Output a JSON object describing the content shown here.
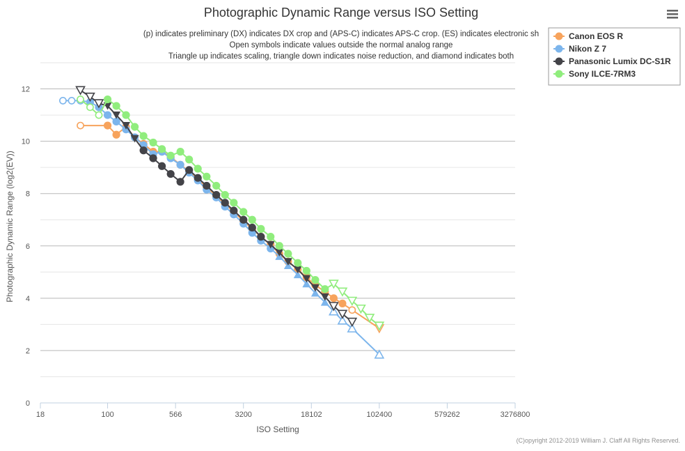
{
  "chart_data": {
    "type": "scatter",
    "title": "Photographic Dynamic Range versus ISO Setting",
    "subtitle": [
      "(p) indicates preliminary (DX) indicates DX crop and (APS-C) indicates APS-C crop. (ES) indicates electronic sh",
      "Open symbols indicate values outside the normal analog range",
      "Triangle up indicates scaling, triangle down indicates noise reduction, and diamond indicates both"
    ],
    "xlabel": "ISO Setting",
    "ylabel": "Photographic Dynamic Range (log2(EV))",
    "x_scale": "log",
    "xlim": [
      18,
      3276800
    ],
    "ylim": [
      0,
      12
    ],
    "x_ticks": [
      18,
      100,
      566,
      3200,
      18102,
      102400,
      579262,
      3276800
    ],
    "y_ticks": [
      0,
      2,
      4,
      6,
      8,
      10,
      12
    ],
    "grid": "horizontal",
    "legend_position": "top-right",
    "copyright": "(C)opyright 2012-2019 William J. Claff All Rights Reserved.",
    "series": [
      {
        "name": "Canon EOS R",
        "color": "#f7a35c",
        "points": [
          {
            "x": 50,
            "y": 10.6,
            "marker": "circle",
            "open": true
          },
          {
            "x": 100,
            "y": 10.6,
            "marker": "circle",
            "open": false
          },
          {
            "x": 125,
            "y": 10.25,
            "marker": "circle",
            "open": false
          },
          {
            "x": 160,
            "y": 10.55,
            "marker": "circle",
            "open": false
          },
          {
            "x": 200,
            "y": 10.15,
            "marker": "circle",
            "open": false
          },
          {
            "x": 250,
            "y": 9.9,
            "marker": "circle",
            "open": false
          },
          {
            "x": 320,
            "y": 9.6,
            "marker": "circle",
            "open": false
          },
          {
            "x": 400,
            "y": 9.6,
            "marker": "circle",
            "open": false
          },
          {
            "x": 500,
            "y": 9.4,
            "marker": "circle",
            "open": false
          },
          {
            "x": 640,
            "y": 9.1,
            "marker": "circle",
            "open": false
          },
          {
            "x": 800,
            "y": 8.85,
            "marker": "circle",
            "open": false
          },
          {
            "x": 1000,
            "y": 8.55,
            "marker": "circle",
            "open": false
          },
          {
            "x": 1250,
            "y": 8.25,
            "marker": "circle",
            "open": false
          },
          {
            "x": 1600,
            "y": 7.9,
            "marker": "circle",
            "open": false
          },
          {
            "x": 2000,
            "y": 7.6,
            "marker": "circle",
            "open": false
          },
          {
            "x": 2500,
            "y": 7.3,
            "marker": "circle",
            "open": false
          },
          {
            "x": 3200,
            "y": 6.95,
            "marker": "circle",
            "open": false
          },
          {
            "x": 4000,
            "y": 6.65,
            "marker": "circle",
            "open": false
          },
          {
            "x": 5000,
            "y": 6.35,
            "marker": "circle",
            "open": false
          },
          {
            "x": 6400,
            "y": 6.05,
            "marker": "circle",
            "open": false
          },
          {
            "x": 8000,
            "y": 5.7,
            "marker": "circle",
            "open": false
          },
          {
            "x": 10000,
            "y": 5.4,
            "marker": "circle",
            "open": false
          },
          {
            "x": 12800,
            "y": 5.1,
            "marker": "circle",
            "open": false
          },
          {
            "x": 16000,
            "y": 4.8,
            "marker": "circle",
            "open": false
          },
          {
            "x": 20000,
            "y": 4.5,
            "marker": "circle",
            "open": false
          },
          {
            "x": 25600,
            "y": 4.25,
            "marker": "circle",
            "open": false
          },
          {
            "x": 32000,
            "y": 4.0,
            "marker": "circle",
            "open": false
          },
          {
            "x": 40000,
            "y": 3.8,
            "marker": "circle",
            "open": false
          },
          {
            "x": 51200,
            "y": 3.55,
            "marker": "circle",
            "open": true
          },
          {
            "x": 102400,
            "y": 2.85,
            "marker": "triangle-down",
            "open": true
          }
        ]
      },
      {
        "name": "Nikon Z 7",
        "color": "#7cb5ec",
        "points": [
          {
            "x": 32,
            "y": 11.55,
            "marker": "circle",
            "open": true
          },
          {
            "x": 40,
            "y": 11.55,
            "marker": "circle",
            "open": true
          },
          {
            "x": 50,
            "y": 11.55,
            "marker": "circle",
            "open": true
          },
          {
            "x": 64,
            "y": 11.5,
            "marker": "circle",
            "open": false
          },
          {
            "x": 80,
            "y": 11.3,
            "marker": "circle",
            "open": false
          },
          {
            "x": 100,
            "y": 11.0,
            "marker": "circle",
            "open": false
          },
          {
            "x": 125,
            "y": 10.75,
            "marker": "circle",
            "open": false
          },
          {
            "x": 160,
            "y": 10.45,
            "marker": "circle",
            "open": false
          },
          {
            "x": 200,
            "y": 10.15,
            "marker": "circle",
            "open": false
          },
          {
            "x": 250,
            "y": 9.85,
            "marker": "circle",
            "open": false
          },
          {
            "x": 320,
            "y": 9.5,
            "marker": "circle",
            "open": false
          },
          {
            "x": 400,
            "y": 9.6,
            "marker": "circle",
            "open": false
          },
          {
            "x": 500,
            "y": 9.35,
            "marker": "circle",
            "open": false
          },
          {
            "x": 640,
            "y": 9.1,
            "marker": "circle",
            "open": false
          },
          {
            "x": 800,
            "y": 8.8,
            "marker": "circle",
            "open": false
          },
          {
            "x": 1000,
            "y": 8.5,
            "marker": "circle",
            "open": false
          },
          {
            "x": 1250,
            "y": 8.15,
            "marker": "circle",
            "open": false
          },
          {
            "x": 1600,
            "y": 7.85,
            "marker": "circle",
            "open": false
          },
          {
            "x": 2000,
            "y": 7.5,
            "marker": "circle",
            "open": false
          },
          {
            "x": 2500,
            "y": 7.2,
            "marker": "circle",
            "open": false
          },
          {
            "x": 3200,
            "y": 6.85,
            "marker": "circle",
            "open": false
          },
          {
            "x": 4000,
            "y": 6.5,
            "marker": "circle",
            "open": false
          },
          {
            "x": 5000,
            "y": 6.2,
            "marker": "circle",
            "open": false
          },
          {
            "x": 6400,
            "y": 5.9,
            "marker": "circle",
            "open": false
          },
          {
            "x": 8000,
            "y": 5.6,
            "marker": "triangle-up",
            "open": false
          },
          {
            "x": 10000,
            "y": 5.25,
            "marker": "triangle-up",
            "open": false
          },
          {
            "x": 12800,
            "y": 4.9,
            "marker": "triangle-up",
            "open": false
          },
          {
            "x": 16000,
            "y": 4.55,
            "marker": "triangle-up",
            "open": false
          },
          {
            "x": 20000,
            "y": 4.2,
            "marker": "triangle-up",
            "open": false
          },
          {
            "x": 25600,
            "y": 3.85,
            "marker": "triangle-up",
            "open": false
          },
          {
            "x": 32000,
            "y": 3.5,
            "marker": "triangle-up",
            "open": true
          },
          {
            "x": 40000,
            "y": 3.15,
            "marker": "triangle-up",
            "open": true
          },
          {
            "x": 51200,
            "y": 2.85,
            "marker": "triangle-up",
            "open": true
          },
          {
            "x": 102400,
            "y": 1.85,
            "marker": "triangle-up",
            "open": true
          }
        ]
      },
      {
        "name": "Panasonic Lumix DC-S1R",
        "color": "#434348",
        "points": [
          {
            "x": 50,
            "y": 11.95,
            "marker": "triangle-down",
            "open": true
          },
          {
            "x": 64,
            "y": 11.7,
            "marker": "triangle-down",
            "open": true
          },
          {
            "x": 80,
            "y": 11.45,
            "marker": "triangle-down",
            "open": true
          },
          {
            "x": 100,
            "y": 11.35,
            "marker": "triangle-down",
            "open": false
          },
          {
            "x": 125,
            "y": 11.0,
            "marker": "triangle-down",
            "open": false
          },
          {
            "x": 160,
            "y": 10.6,
            "marker": "triangle-down",
            "open": false
          },
          {
            "x": 200,
            "y": 10.1,
            "marker": "triangle-down",
            "open": false
          },
          {
            "x": 250,
            "y": 9.65,
            "marker": "circle",
            "open": false
          },
          {
            "x": 320,
            "y": 9.35,
            "marker": "circle",
            "open": false
          },
          {
            "x": 400,
            "y": 9.05,
            "marker": "circle",
            "open": false
          },
          {
            "x": 500,
            "y": 8.75,
            "marker": "circle",
            "open": false
          },
          {
            "x": 640,
            "y": 8.45,
            "marker": "circle",
            "open": false
          },
          {
            "x": 800,
            "y": 8.9,
            "marker": "circle",
            "open": false
          },
          {
            "x": 1000,
            "y": 8.6,
            "marker": "circle",
            "open": false
          },
          {
            "x": 1250,
            "y": 8.3,
            "marker": "circle",
            "open": false
          },
          {
            "x": 1600,
            "y": 7.95,
            "marker": "circle",
            "open": false
          },
          {
            "x": 2000,
            "y": 7.65,
            "marker": "circle",
            "open": false
          },
          {
            "x": 2500,
            "y": 7.35,
            "marker": "circle",
            "open": false
          },
          {
            "x": 3200,
            "y": 7.0,
            "marker": "circle",
            "open": false
          },
          {
            "x": 4000,
            "y": 6.7,
            "marker": "circle",
            "open": false
          },
          {
            "x": 5000,
            "y": 6.35,
            "marker": "circle",
            "open": false
          },
          {
            "x": 6400,
            "y": 6.05,
            "marker": "triangle-down",
            "open": false
          },
          {
            "x": 8000,
            "y": 5.75,
            "marker": "triangle-down",
            "open": false
          },
          {
            "x": 10000,
            "y": 5.4,
            "marker": "triangle-down",
            "open": false
          },
          {
            "x": 12800,
            "y": 5.1,
            "marker": "triangle-down",
            "open": false
          },
          {
            "x": 16000,
            "y": 4.75,
            "marker": "triangle-down",
            "open": false
          },
          {
            "x": 20000,
            "y": 4.4,
            "marker": "triangle-down",
            "open": false
          },
          {
            "x": 25600,
            "y": 4.05,
            "marker": "triangle-down",
            "open": false
          },
          {
            "x": 32000,
            "y": 3.7,
            "marker": "triangle-down",
            "open": true
          },
          {
            "x": 40000,
            "y": 3.4,
            "marker": "triangle-down",
            "open": true
          },
          {
            "x": 51200,
            "y": 3.1,
            "marker": "triangle-down",
            "open": true
          }
        ]
      },
      {
        "name": "Sony ILCE-7RM3",
        "color": "#90ed7d",
        "points": [
          {
            "x": 50,
            "y": 11.6,
            "marker": "circle",
            "open": true
          },
          {
            "x": 64,
            "y": 11.3,
            "marker": "circle",
            "open": true
          },
          {
            "x": 80,
            "y": 11.0,
            "marker": "circle",
            "open": true
          },
          {
            "x": 100,
            "y": 11.6,
            "marker": "circle",
            "open": false
          },
          {
            "x": 125,
            "y": 11.35,
            "marker": "circle",
            "open": false
          },
          {
            "x": 160,
            "y": 11.0,
            "marker": "circle",
            "open": false
          },
          {
            "x": 200,
            "y": 10.55,
            "marker": "circle",
            "open": false
          },
          {
            "x": 250,
            "y": 10.2,
            "marker": "circle",
            "open": false
          },
          {
            "x": 320,
            "y": 9.95,
            "marker": "circle",
            "open": false
          },
          {
            "x": 400,
            "y": 9.7,
            "marker": "circle",
            "open": false
          },
          {
            "x": 500,
            "y": 9.45,
            "marker": "circle",
            "open": false
          },
          {
            "x": 640,
            "y": 9.6,
            "marker": "circle",
            "open": false
          },
          {
            "x": 800,
            "y": 9.3,
            "marker": "circle",
            "open": false
          },
          {
            "x": 1000,
            "y": 8.95,
            "marker": "circle",
            "open": false
          },
          {
            "x": 1250,
            "y": 8.65,
            "marker": "circle",
            "open": false
          },
          {
            "x": 1600,
            "y": 8.3,
            "marker": "circle",
            "open": false
          },
          {
            "x": 2000,
            "y": 7.95,
            "marker": "circle",
            "open": false
          },
          {
            "x": 2500,
            "y": 7.65,
            "marker": "circle",
            "open": false
          },
          {
            "x": 3200,
            "y": 7.3,
            "marker": "circle",
            "open": false
          },
          {
            "x": 4000,
            "y": 7.0,
            "marker": "circle",
            "open": false
          },
          {
            "x": 5000,
            "y": 6.65,
            "marker": "circle",
            "open": false
          },
          {
            "x": 6400,
            "y": 6.35,
            "marker": "circle",
            "open": false
          },
          {
            "x": 8000,
            "y": 6.0,
            "marker": "circle",
            "open": false
          },
          {
            "x": 10000,
            "y": 5.7,
            "marker": "circle",
            "open": false
          },
          {
            "x": 12800,
            "y": 5.35,
            "marker": "circle",
            "open": false
          },
          {
            "x": 16000,
            "y": 5.05,
            "marker": "circle",
            "open": false
          },
          {
            "x": 20000,
            "y": 4.7,
            "marker": "circle",
            "open": false
          },
          {
            "x": 25600,
            "y": 4.35,
            "marker": "circle",
            "open": false
          },
          {
            "x": 32000,
            "y": 4.55,
            "marker": "triangle-down",
            "open": true
          },
          {
            "x": 40000,
            "y": 4.25,
            "marker": "triangle-down",
            "open": true
          },
          {
            "x": 51200,
            "y": 3.9,
            "marker": "triangle-down",
            "open": true
          },
          {
            "x": 64000,
            "y": 3.6,
            "marker": "triangle-down",
            "open": true
          },
          {
            "x": 80000,
            "y": 3.25,
            "marker": "triangle-down",
            "open": true
          },
          {
            "x": 102400,
            "y": 2.95,
            "marker": "triangle-down",
            "open": true
          }
        ]
      }
    ]
  }
}
